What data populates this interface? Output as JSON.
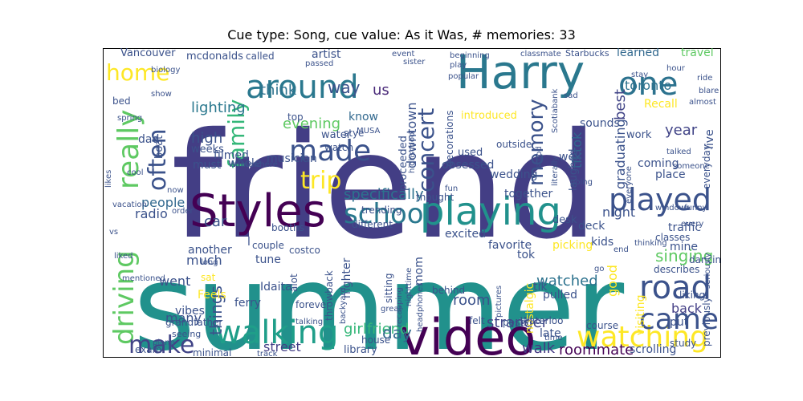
{
  "chart_data": {
    "type": "wordcloud",
    "title": "Cue type: Song, cue value: As it Was, # memories: 33",
    "words": [
      {
        "text": "friend",
        "color": "#433e85"
      },
      {
        "text": "summer",
        "color": "#21918c"
      },
      {
        "text": "Harry",
        "color": "#2a788e"
      },
      {
        "text": "Styles",
        "color": "#440154"
      },
      {
        "text": "video",
        "color": "#440154"
      },
      {
        "text": "playing",
        "color": "#21918c"
      },
      {
        "text": "played",
        "color": "#3b528b"
      },
      {
        "text": "around",
        "color": "#2a788e"
      },
      {
        "text": "one",
        "color": "#2c728e"
      },
      {
        "text": "walking",
        "color": "#1f9e89"
      },
      {
        "text": "watching",
        "color": "#fde725"
      },
      {
        "text": "made",
        "color": "#3b528b"
      },
      {
        "text": "school",
        "color": "#2a788e"
      },
      {
        "text": "road",
        "color": "#3b528b"
      },
      {
        "text": "came",
        "color": "#3b528b"
      },
      {
        "text": "really",
        "color": "#5ec962"
      },
      {
        "text": "often",
        "color": "#3b528b"
      },
      {
        "text": "family",
        "color": "#35b779"
      },
      {
        "text": "trip",
        "color": "#fde725"
      },
      {
        "text": "home",
        "color": "#fde725"
      },
      {
        "text": "driving",
        "color": "#5ec962"
      },
      {
        "text": "make",
        "color": "#414487"
      },
      {
        "text": "memory",
        "color": "#3b528b"
      },
      {
        "text": "concert",
        "color": "#3b528b"
      },
      {
        "text": "specifically",
        "color": "#2c728e"
      },
      {
        "text": "things",
        "color": "#3b528b"
      },
      {
        "text": "singing",
        "color": "#5ec962"
      },
      {
        "text": "girlfriend",
        "color": "#35b779"
      },
      {
        "text": "roommate",
        "color": "#440154"
      },
      {
        "text": "stranger",
        "color": "#414487"
      },
      {
        "text": "lighting",
        "color": "#2a788e"
      },
      {
        "text": "think",
        "color": "#2c728e"
      },
      {
        "text": "way",
        "color": "#3b528b"
      },
      {
        "text": "us",
        "color": "#482878"
      },
      {
        "text": "know",
        "color": "#31688e"
      },
      {
        "text": "evening",
        "color": "#5ec962"
      },
      {
        "text": "high",
        "color": "#3b528b"
      },
      {
        "text": "year",
        "color": "#414487"
      },
      {
        "text": "best",
        "color": "#414487"
      },
      {
        "text": "graduating",
        "color": "#3b528b"
      },
      {
        "text": "tiktok",
        "color": "#31688e"
      },
      {
        "text": "downtown",
        "color": "#3b528b"
      },
      {
        "text": "toronto",
        "color": "#2c728e"
      },
      {
        "text": "learned",
        "color": "#31688e"
      },
      {
        "text": "travel",
        "color": "#5ec962"
      },
      {
        "text": "walk",
        "color": "#443983"
      },
      {
        "text": "day",
        "color": "#31688e"
      },
      {
        "text": "street",
        "color": "#433e85"
      },
      {
        "text": "watched",
        "color": "#2c728e"
      },
      {
        "text": "back",
        "color": "#433e85"
      },
      {
        "text": "room",
        "color": "#3b528b"
      },
      {
        "text": "people",
        "color": "#31688e"
      },
      {
        "text": "much",
        "color": "#3b528b"
      },
      {
        "text": "car",
        "color": "#3b528b"
      },
      {
        "text": "radio",
        "color": "#3b528b"
      },
      {
        "text": "night",
        "color": "#3b528b"
      },
      {
        "text": "traffic",
        "color": "#3b528b"
      },
      {
        "text": "must",
        "color": "#3b528b"
      },
      {
        "text": "went",
        "color": "#3b528b"
      },
      {
        "text": "many",
        "color": "#3b528b"
      },
      {
        "text": "good",
        "color": "#fde725"
      },
      {
        "text": "obsessed",
        "color": "#3b528b"
      },
      {
        "text": "wedding",
        "color": "#3b528b"
      },
      {
        "text": "together",
        "color": "#3b528b"
      },
      {
        "text": "picking",
        "color": "#fde725"
      },
      {
        "text": "favorite",
        "color": "#3b528b"
      },
      {
        "text": "excited",
        "color": "#3b528b"
      },
      {
        "text": "kids",
        "color": "#3b528b"
      },
      {
        "text": "mine",
        "color": "#3b528b"
      },
      {
        "text": "put",
        "color": "#3b528b"
      },
      {
        "text": "previously",
        "color": "#3b528b"
      },
      {
        "text": "study",
        "color": "#3b528b"
      },
      {
        "text": "scrolling",
        "color": "#3b528b"
      },
      {
        "text": "late",
        "color": "#3b528b"
      },
      {
        "text": "pulled",
        "color": "#3b528b"
      },
      {
        "text": "library",
        "color": "#3b528b"
      },
      {
        "text": "vibes",
        "color": "#3b528b"
      },
      {
        "text": "ferry",
        "color": "#3b528b"
      },
      {
        "text": "minimal",
        "color": "#3b528b"
      },
      {
        "text": "another",
        "color": "#3b528b"
      },
      {
        "text": "Vancouver",
        "color": "#3b528b"
      },
      {
        "text": "mcdonalds",
        "color": "#3b528b"
      },
      {
        "text": "called",
        "color": "#3b528b"
      },
      {
        "text": "artist",
        "color": "#3b528b"
      },
      {
        "text": "Starbucks",
        "color": "#3b528b"
      },
      {
        "text": "Recall",
        "color": "#fde725"
      },
      {
        "text": "sounds",
        "color": "#3b528b"
      },
      {
        "text": "work",
        "color": "#3b528b"
      },
      {
        "text": "well",
        "color": "#3b528b"
      },
      {
        "text": "used",
        "color": "#3b528b"
      },
      {
        "text": "introduced",
        "color": "#fde725"
      },
      {
        "text": "water",
        "color": "#3b528b"
      },
      {
        "text": "musician",
        "color": "#3b528b"
      },
      {
        "text": "filmed",
        "color": "#3b528b"
      },
      {
        "text": "whole",
        "color": "#3b528b"
      },
      {
        "text": "weeks",
        "color": "#3b528b"
      },
      {
        "text": "dad",
        "color": "#3b528b"
      },
      {
        "text": "boat",
        "color": "#3b528b"
      },
      {
        "text": "coming",
        "color": "#3b528b"
      },
      {
        "text": "place",
        "color": "#3b528b"
      },
      {
        "text": "live",
        "color": "#3b528b"
      },
      {
        "text": "everyday",
        "color": "#3b528b"
      },
      {
        "text": "deck",
        "color": "#3b528b"
      },
      {
        "text": "desk",
        "color": "#3b528b"
      },
      {
        "text": "nighter",
        "color": "#3b528b"
      },
      {
        "text": "tok",
        "color": "#3b528b"
      },
      {
        "text": "tik",
        "color": "#3b528b"
      },
      {
        "text": "mom",
        "color": "#3b528b"
      },
      {
        "text": "nostalgic",
        "color": "#fde725"
      },
      {
        "text": "visiting",
        "color": "#fde725"
      },
      {
        "text": "Feels",
        "color": "#fde725"
      },
      {
        "text": "tune",
        "color": "#3b528b"
      },
      {
        "text": "Idaita",
        "color": "#3b528b"
      },
      {
        "text": "costco",
        "color": "#3b528b"
      },
      {
        "text": "couple",
        "color": "#3b528b"
      },
      {
        "text": "laughed",
        "color": "#3b528b"
      },
      {
        "text": "proceeded",
        "color": "#3b528b"
      },
      {
        "text": "watch",
        "color": "#3b528b"
      },
      {
        "text": "stye",
        "color": "#3b528b"
      },
      {
        "text": "top",
        "color": "#3b528b"
      },
      {
        "text": "decorations",
        "color": "#3b528b"
      },
      {
        "text": "sitting",
        "color": "#3b528b"
      },
      {
        "text": "sat",
        "color": "#fde725"
      },
      {
        "text": "l",
        "color": "#3b528b"
      },
      {
        "text": "grandfather",
        "color": "#3b528b"
      },
      {
        "text": "seeing",
        "color": "#3b528b"
      },
      {
        "text": "exam",
        "color": "#3b528b"
      },
      {
        "text": "plane",
        "color": "#3b528b"
      },
      {
        "text": "talking",
        "color": "#3b528b"
      },
      {
        "text": "house",
        "color": "#3b528b"
      },
      {
        "text": "track",
        "color": "#3b528b"
      },
      {
        "text": "forever",
        "color": "#3b528b"
      },
      {
        "text": "alot",
        "color": "#3b528b"
      },
      {
        "text": "backyard",
        "color": "#3b528b"
      },
      {
        "text": "throwback",
        "color": "#3b528b"
      },
      {
        "text": "great",
        "color": "#3b528b"
      },
      {
        "text": "recapping",
        "color": "#3b528b"
      },
      {
        "text": "nighttime",
        "color": "#3b528b"
      },
      {
        "text": "headphones",
        "color": "#3b528b"
      },
      {
        "text": "behind",
        "color": "#3b528b"
      },
      {
        "text": "felt",
        "color": "#3b528b"
      },
      {
        "text": "pictures",
        "color": "#3b528b"
      },
      {
        "text": "posts",
        "color": "#3b528b"
      },
      {
        "text": "Waterloo",
        "color": "#3b528b"
      },
      {
        "text": "course",
        "color": "#3b528b"
      },
      {
        "text": "time",
        "color": "#3b528b"
      },
      {
        "text": "trending",
        "color": "#3b528b"
      },
      {
        "text": "different",
        "color": "#3b528b"
      },
      {
        "text": "booths",
        "color": "#3b528b"
      },
      {
        "text": "thought",
        "color": "#3b528b"
      },
      {
        "text": "fun",
        "color": "#3b528b"
      },
      {
        "text": "outside",
        "color": "#3b528b"
      },
      {
        "text": "highschool",
        "color": "#3b528b"
      },
      {
        "text": "MUSA",
        "color": "#3b528b"
      },
      {
        "text": "stood",
        "color": "#3b528b"
      },
      {
        "text": "literally",
        "color": "#3b528b"
      },
      {
        "text": "going",
        "color": "#3b528b"
      },
      {
        "text": "everyone",
        "color": "#3b528b"
      },
      {
        "text": "funny",
        "color": "#3b528b"
      },
      {
        "text": "someone",
        "color": "#3b528b"
      },
      {
        "text": "talked",
        "color": "#3b528b"
      },
      {
        "text": "windows",
        "color": "#3b528b"
      },
      {
        "text": "every",
        "color": "#3b528b"
      },
      {
        "text": "dancing",
        "color": "#3b528b"
      },
      {
        "text": "classes",
        "color": "#3b528b"
      },
      {
        "text": "describes",
        "color": "#3b528b"
      },
      {
        "text": "liking",
        "color": "#3b528b"
      },
      {
        "text": "thinking",
        "color": "#3b528b"
      },
      {
        "text": "end",
        "color": "#3b528b"
      },
      {
        "text": "go",
        "color": "#3b528b"
      },
      {
        "text": "stay",
        "color": "#3b528b"
      },
      {
        "text": "hour",
        "color": "#3b528b"
      },
      {
        "text": "ride",
        "color": "#3b528b"
      },
      {
        "text": "blare",
        "color": "#3b528b"
      },
      {
        "text": "almost",
        "color": "#3b528b"
      },
      {
        "text": "sad",
        "color": "#3b528b"
      },
      {
        "text": "Scotiabank",
        "color": "#3b528b"
      },
      {
        "text": "popular",
        "color": "#3b528b"
      },
      {
        "text": "play",
        "color": "#3b528b"
      },
      {
        "text": "beginning",
        "color": "#3b528b"
      },
      {
        "text": "classmate",
        "color": "#3b528b"
      },
      {
        "text": "event",
        "color": "#3b528b"
      },
      {
        "text": "sister",
        "color": "#3b528b"
      },
      {
        "text": "passed",
        "color": "#3b528b"
      },
      {
        "text": "biology",
        "color": "#3b528b"
      },
      {
        "text": "show",
        "color": "#3b528b"
      },
      {
        "text": "bed",
        "color": "#3b528b"
      },
      {
        "text": "spring",
        "color": "#3b528b"
      },
      {
        "text": "cool",
        "color": "#3b528b"
      },
      {
        "text": "likes",
        "color": "#3b528b"
      },
      {
        "text": "now",
        "color": "#3b528b"
      },
      {
        "text": "vacation",
        "color": "#3b528b"
      },
      {
        "text": "order",
        "color": "#3b528b"
      },
      {
        "text": "vs",
        "color": "#3b528b"
      },
      {
        "text": "liked",
        "color": "#3b528b"
      },
      {
        "text": "mentioned",
        "color": "#3b528b"
      },
      {
        "text": "somewhere",
        "color": "#3b528b"
      },
      {
        "text": "long",
        "color": "#3b528b"
      },
      {
        "text": "seriously",
        "color": "#3b528b"
      }
    ]
  }
}
